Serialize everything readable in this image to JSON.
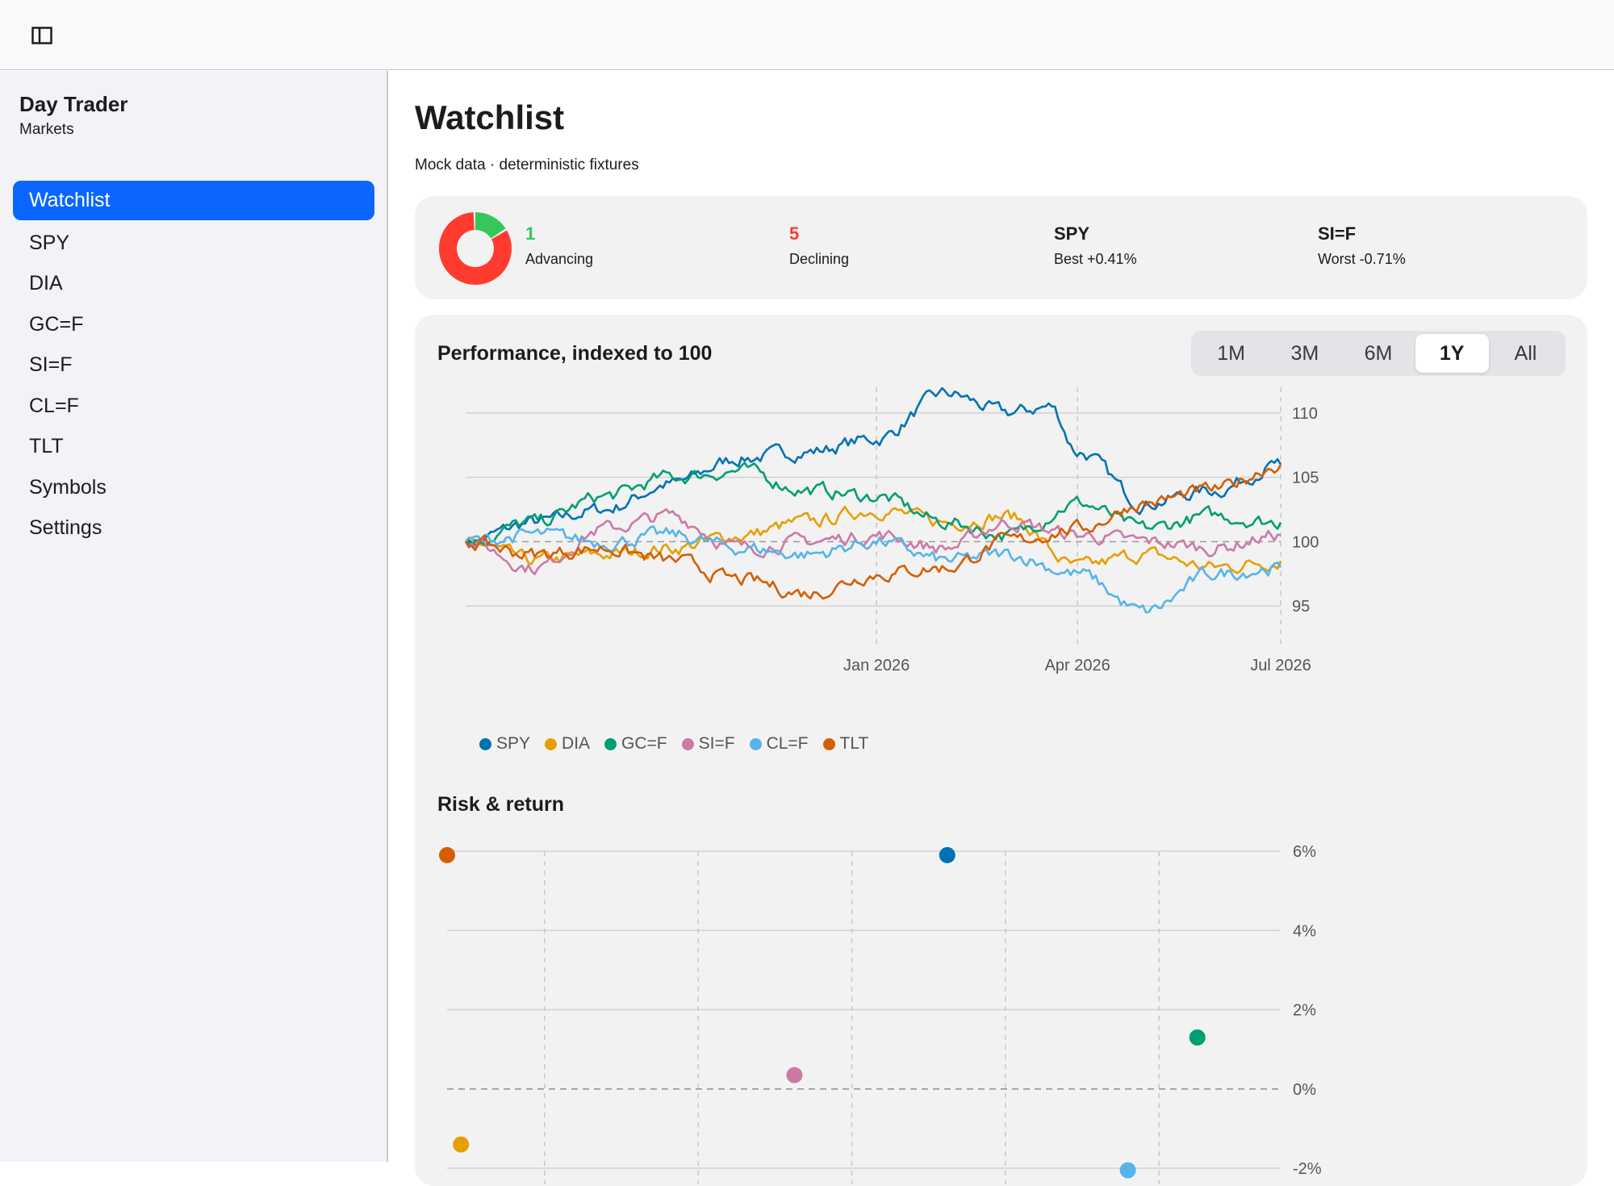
{
  "topbar": {
    "toggle_icon": "sidebar-toggle-icon"
  },
  "sidebar": {
    "app_title": "Day Trader",
    "app_subtitle": "Markets",
    "items": [
      {
        "label": "Watchlist",
        "active": true
      },
      {
        "label": "SPY"
      },
      {
        "label": "DIA"
      },
      {
        "label": "GC=F"
      },
      {
        "label": "SI=F"
      },
      {
        "label": "CL=F"
      },
      {
        "label": "TLT"
      },
      {
        "label": "Symbols"
      },
      {
        "label": "Settings"
      }
    ]
  },
  "main": {
    "title": "Watchlist",
    "subtitle": "Mock data · deterministic fixtures",
    "summary": {
      "advancing": {
        "value": "1",
        "label": "Advancing",
        "count": 1
      },
      "declining": {
        "value": "5",
        "label": "Declining",
        "count": 5
      },
      "best": {
        "symbol": "SPY",
        "label": "Best +0.41%"
      },
      "worst": {
        "symbol": "SI=F",
        "label": "Worst -0.71%"
      }
    },
    "chart_title": "Performance, indexed to 100",
    "ranges": [
      "1M",
      "3M",
      "6M",
      "1Y",
      "All"
    ],
    "active_range": "1Y",
    "risk_title": "Risk & return"
  },
  "colors": {
    "accent": "#0a66ff",
    "advancing": "#34c759",
    "declining": "#ff3b30",
    "SPY": "#0072b2",
    "DIA": "#e69f00",
    "GC=F": "#009e73",
    "SI=F": "#cc79a7",
    "CL=F": "#56b4e9",
    "TLT": "#d55e00"
  },
  "chart_data": [
    {
      "type": "line",
      "title": "Performance, indexed to 100",
      "x_ticks": [
        "Jan 2026",
        "Apr 2026",
        "Jul 2026"
      ],
      "y_ticks": [
        95,
        100,
        105,
        110
      ],
      "ylim": [
        93,
        112
      ],
      "baseline": 100,
      "x_range": [
        "2025-07-01",
        "2026-07-01"
      ],
      "grid": true,
      "legend_position": "bottom-left",
      "series": [
        {
          "name": "SPY",
          "points": [
            [
              "2025-07-01",
              100
            ],
            [
              "2025-08-01",
              101.5
            ],
            [
              "2025-09-01",
              102.5
            ],
            [
              "2025-10-01",
              104.5
            ],
            [
              "2025-11-01",
              106.5
            ],
            [
              "2025-12-01",
              107
            ],
            [
              "2026-01-01",
              108
            ],
            [
              "2026-02-01",
              111.5
            ],
            [
              "2026-03-01",
              110
            ],
            [
              "2026-03-20",
              110.5
            ],
            [
              "2026-04-01",
              107
            ],
            [
              "2026-05-01",
              103
            ],
            [
              "2026-06-01",
              104
            ],
            [
              "2026-07-01",
              106
            ]
          ]
        },
        {
          "name": "DIA",
          "points": [
            [
              "2025-07-01",
              100
            ],
            [
              "2025-08-01",
              98.5
            ],
            [
              "2025-09-01",
              99
            ],
            [
              "2025-10-01",
              99.5
            ],
            [
              "2025-11-01",
              100.5
            ],
            [
              "2025-12-01",
              101.5
            ],
            [
              "2026-01-01",
              102.5
            ],
            [
              "2026-02-01",
              101.5
            ],
            [
              "2026-03-01",
              102
            ],
            [
              "2026-04-01",
              98
            ],
            [
              "2026-05-01",
              99
            ],
            [
              "2026-06-01",
              98
            ],
            [
              "2026-07-01",
              98.5
            ]
          ]
        },
        {
          "name": "GC=F",
          "points": [
            [
              "2025-07-01",
              100
            ],
            [
              "2025-08-01",
              101.5
            ],
            [
              "2025-09-01",
              103.5
            ],
            [
              "2025-10-01",
              105
            ],
            [
              "2025-11-01",
              105.5
            ],
            [
              "2025-12-01",
              104
            ],
            [
              "2026-01-01",
              103.5
            ],
            [
              "2026-02-01",
              101.5
            ],
            [
              "2026-03-01",
              100.5
            ],
            [
              "2026-04-01",
              103
            ],
            [
              "2026-05-01",
              101
            ],
            [
              "2026-06-01",
              102
            ],
            [
              "2026-07-01",
              101.5
            ]
          ]
        },
        {
          "name": "SI=F",
          "points": [
            [
              "2025-07-01",
              100
            ],
            [
              "2025-08-01",
              98
            ],
            [
              "2025-09-01",
              101
            ],
            [
              "2025-10-01",
              102
            ],
            [
              "2025-11-01",
              99.5
            ],
            [
              "2025-12-01",
              100
            ],
            [
              "2026-01-01",
              100.5
            ],
            [
              "2026-02-01",
              99.5
            ],
            [
              "2026-03-01",
              101.5
            ],
            [
              "2026-04-01",
              100.5
            ],
            [
              "2026-05-01",
              100
            ],
            [
              "2026-06-01",
              99.5
            ],
            [
              "2026-07-01",
              100.5
            ]
          ]
        },
        {
          "name": "CL=F",
          "points": [
            [
              "2025-07-01",
              100
            ],
            [
              "2025-08-01",
              100.5
            ],
            [
              "2025-09-01",
              100
            ],
            [
              "2025-10-01",
              100.5
            ],
            [
              "2025-11-01",
              99.5
            ],
            [
              "2025-12-01",
              99
            ],
            [
              "2026-01-01",
              100
            ],
            [
              "2026-02-01",
              98.5
            ],
            [
              "2026-03-01",
              99
            ],
            [
              "2026-04-01",
              97.5
            ],
            [
              "2026-05-01",
              94.5
            ],
            [
              "2026-06-01",
              97.5
            ],
            [
              "2026-07-01",
              98
            ]
          ]
        },
        {
          "name": "TLT",
          "points": [
            [
              "2025-07-01",
              100
            ],
            [
              "2025-08-01",
              99
            ],
            [
              "2025-09-01",
              99.5
            ],
            [
              "2025-10-01",
              98.5
            ],
            [
              "2025-11-01",
              97
            ],
            [
              "2025-12-01",
              96
            ],
            [
              "2026-01-01",
              97.5
            ],
            [
              "2026-02-01",
              98
            ],
            [
              "2026-03-01",
              100
            ],
            [
              "2026-04-01",
              101
            ],
            [
              "2026-05-01",
              103
            ],
            [
              "2026-06-01",
              104
            ],
            [
              "2026-07-01",
              106
            ]
          ]
        }
      ]
    },
    {
      "type": "scatter",
      "title": "Risk & return",
      "y_ticks": [
        "6%",
        "4%",
        "2%",
        "0%",
        "-2%"
      ],
      "ylim": [
        -2,
        6
      ],
      "xlim": [
        0,
        6
      ],
      "grid": true,
      "points": [
        {
          "name": "TLT",
          "x": 0.0,
          "y": 5.9
        },
        {
          "name": "SPY",
          "x": 3.6,
          "y": 5.9
        },
        {
          "name": "GC=F",
          "x": 5.4,
          "y": 1.3
        },
        {
          "name": "SI=F",
          "x": 2.5,
          "y": 0.35
        },
        {
          "name": "DIA",
          "x": 0.1,
          "y": -1.4
        },
        {
          "name": "CL=F",
          "x": 4.9,
          "y": -2.05
        }
      ]
    }
  ]
}
